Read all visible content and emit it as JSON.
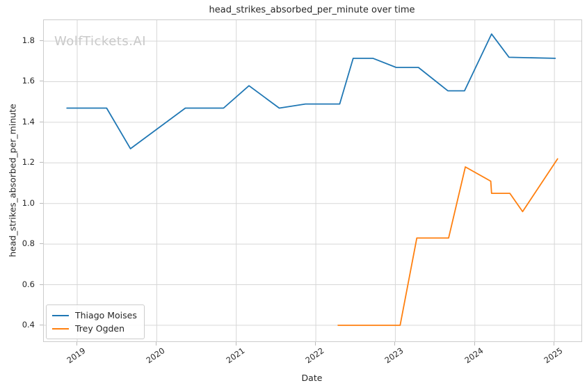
{
  "figure": {
    "title": "head_strikes_absorbed_per_minute over time",
    "watermark": "WolfTickets.AI"
  },
  "chart_data": {
    "type": "line",
    "title": "head_strikes_absorbed_per_minute over time",
    "xlabel": "Date",
    "ylabel": "head_strikes_absorbed_per_minute",
    "xlim": [
      2018.58,
      2025.34
    ],
    "ylim": [
      0.321,
      1.903
    ],
    "x_ticks": [
      2019,
      2020,
      2021,
      2022,
      2023,
      2024,
      2025
    ],
    "y_ticks": [
      0.4,
      0.6,
      0.8,
      1.0,
      1.2,
      1.4,
      1.6,
      1.8
    ],
    "grid": true,
    "legend_position": "lower left",
    "series": [
      {
        "name": "Thiago Moises",
        "color": "#1f77b4",
        "x": [
          2018.87,
          2019.37,
          2019.67,
          2020.36,
          2020.84,
          2021.16,
          2021.54,
          2021.87,
          2022.3,
          2022.47,
          2022.72,
          2023.01,
          2023.29,
          2023.66,
          2023.87,
          2024.21,
          2024.43,
          2025.01
        ],
        "y": [
          1.47,
          1.47,
          1.27,
          1.47,
          1.47,
          1.58,
          1.47,
          1.49,
          1.49,
          1.715,
          1.715,
          1.67,
          1.67,
          1.555,
          1.555,
          1.835,
          1.72,
          1.715
        ]
      },
      {
        "name": "Trey Ogden",
        "color": "#ff7f0e",
        "x": [
          2022.28,
          2023.06,
          2023.27,
          2023.67,
          2023.88,
          2024.2,
          2024.21,
          2024.44,
          2024.6,
          2025.04
        ],
        "y": [
          0.4,
          0.4,
          0.83,
          0.83,
          1.18,
          1.11,
          1.05,
          1.05,
          0.96,
          1.22
        ]
      }
    ]
  },
  "colors": {
    "background": "#ffffff",
    "grid": "#d7d7d7",
    "spine": "#cccccc",
    "tick": "#bbbbbb",
    "text": "#262626",
    "watermark": "#c9c9c9"
  }
}
